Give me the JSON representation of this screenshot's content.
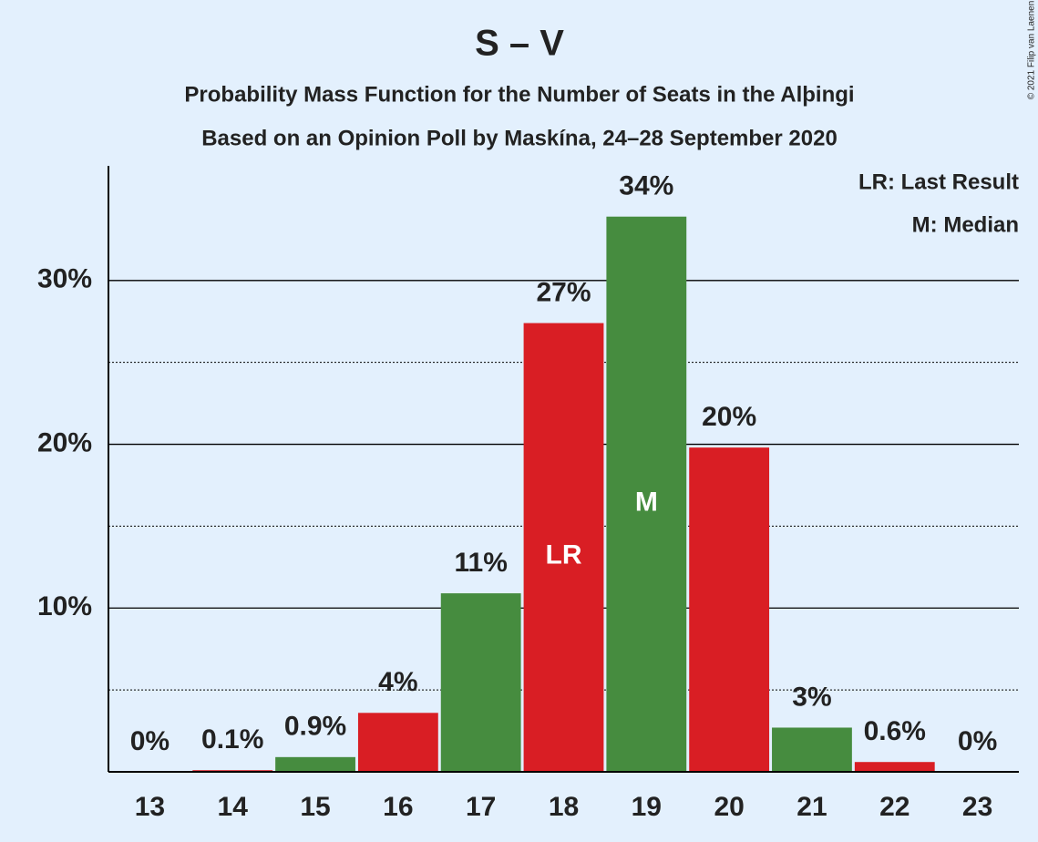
{
  "chart_data": {
    "type": "bar",
    "title": "S – V",
    "subtitle": "Probability Mass Function for the Number of Seats in the Alþingi",
    "subtitle2": "Based on an Opinion Poll by Maskína, 24–28 September 2020",
    "copyright": "© 2021 Filip van Laenen",
    "legend": [
      "LR: Last Result",
      "M: Median"
    ],
    "categories": [
      "13",
      "14",
      "15",
      "16",
      "17",
      "18",
      "19",
      "20",
      "21",
      "22",
      "23"
    ],
    "values": [
      0,
      0.1,
      0.9,
      3.6,
      10.9,
      27.4,
      33.9,
      19.8,
      2.7,
      0.6,
      0
    ],
    "value_labels": [
      "0%",
      "0.1%",
      "0.9%",
      "4%",
      "11%",
      "27%",
      "34%",
      "20%",
      "3%",
      "0.6%",
      "0%"
    ],
    "colors": [
      "#468c3f",
      "#d91e24",
      "#468c3f",
      "#d91e24",
      "#468c3f",
      "#d91e24",
      "#468c3f",
      "#d91e24",
      "#468c3f",
      "#d91e24",
      "#468c3f"
    ],
    "annotations": [
      {
        "text": "LR",
        "category": "18"
      },
      {
        "text": "M",
        "category": "19"
      }
    ],
    "ylim": [
      0,
      37
    ],
    "yticks": [
      {
        "value": 10,
        "label": "10%"
      },
      {
        "value": 20,
        "label": "20%"
      },
      {
        "value": 30,
        "label": "30%"
      }
    ],
    "minor_yticks": [
      5,
      15,
      25
    ],
    "grid": true
  }
}
